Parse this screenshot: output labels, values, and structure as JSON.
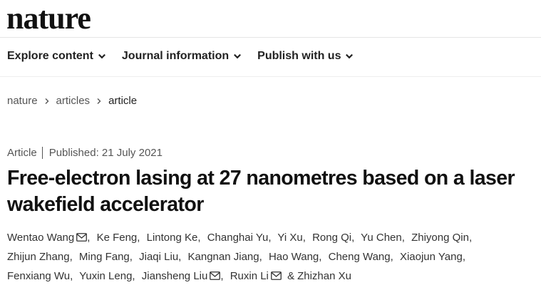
{
  "header": {
    "logo": "nature"
  },
  "nav": {
    "items": [
      "Explore content",
      "Journal information",
      "Publish with us"
    ]
  },
  "breadcrumb": {
    "items": [
      "nature",
      "articles",
      "article"
    ]
  },
  "article": {
    "type": "Article",
    "published": "Published: 21 July 2021",
    "title": "Free-electron lasing at 27 nanometres based on a laser wakefield accelerator",
    "author_separator": ",",
    "last_separator": "&",
    "authors": [
      {
        "name": "Wentao Wang",
        "email": true
      },
      {
        "name": "Ke Feng",
        "email": false
      },
      {
        "name": "Lintong Ke",
        "email": false
      },
      {
        "name": "Changhai Yu",
        "email": false
      },
      {
        "name": "Yi Xu",
        "email": false
      },
      {
        "name": "Rong Qi",
        "email": false
      },
      {
        "name": "Yu Chen",
        "email": false
      },
      {
        "name": "Zhiyong Qin",
        "email": false
      },
      {
        "name": "Zhijun Zhang",
        "email": false
      },
      {
        "name": "Ming Fang",
        "email": false
      },
      {
        "name": "Jiaqi Liu",
        "email": false
      },
      {
        "name": "Kangnan Jiang",
        "email": false
      },
      {
        "name": "Hao Wang",
        "email": false
      },
      {
        "name": "Cheng Wang",
        "email": false
      },
      {
        "name": "Xiaojun Yang",
        "email": false
      },
      {
        "name": "Fenxiang Wu",
        "email": false
      },
      {
        "name": "Yuxin Leng",
        "email": false
      },
      {
        "name": "Jiansheng Liu",
        "email": true
      },
      {
        "name": "Ruxin Li",
        "email": true
      },
      {
        "name": "Zhizhan Xu",
        "email": false
      }
    ]
  }
}
